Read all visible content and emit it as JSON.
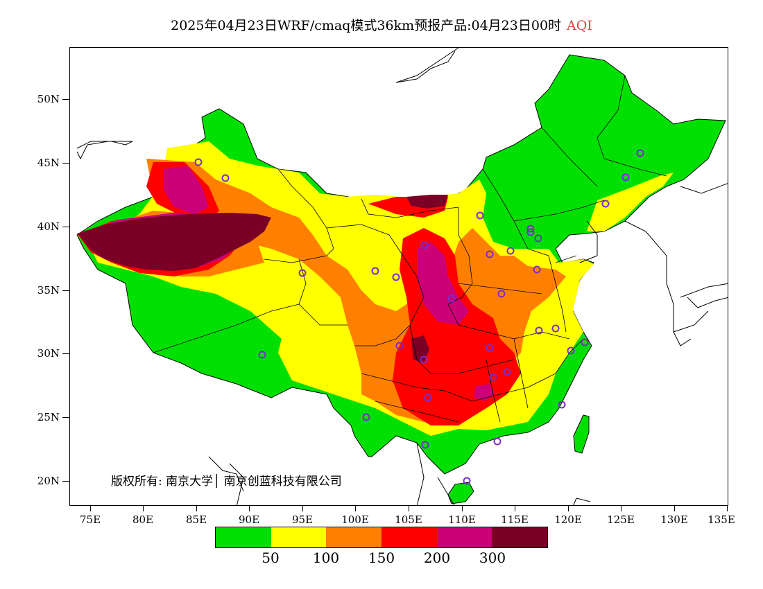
{
  "title": {
    "text": "2025年04月23日WRF/cmaq模式36km预报产品:04月23日00时",
    "variable": "AQI",
    "variable_color": "#e04040"
  },
  "map": {
    "latitude_labels": [
      "50N",
      "45N",
      "40N",
      "35N",
      "30N",
      "25N",
      "20N"
    ],
    "longitude_labels": [
      "75E",
      "80E",
      "85E",
      "90E",
      "95E",
      "100E",
      "105E",
      "110E",
      "115E",
      "120E",
      "125E",
      "130E",
      "135E"
    ]
  },
  "copyright": "版权所有: 南京大学│ 南京创蓝科技有限公司",
  "legend": {
    "colors": [
      "#00e000",
      "#ffff00",
      "#ff8000",
      "#ff0000",
      "#cc0077",
      "#7a0026"
    ],
    "labels": [
      "50",
      "100",
      "150",
      "200",
      "300"
    ]
  },
  "stations_color": "#7a2ccf"
}
